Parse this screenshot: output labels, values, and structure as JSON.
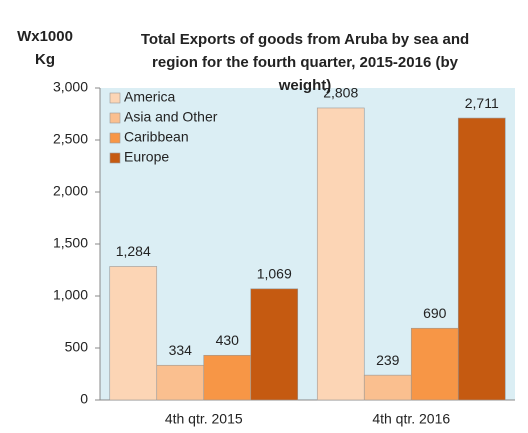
{
  "chart_data": {
    "type": "bar",
    "title": [
      "Total Exports of goods from Aruba by sea and",
      "region for the fourth quarter, 2015-2016 (by",
      "weight)"
    ],
    "y_label": [
      "Wx1000",
      "Kg"
    ],
    "categories": [
      "4th qtr. 2015",
      "4th qtr. 2016"
    ],
    "series": [
      {
        "name": "America",
        "color": "#fcd5b5",
        "values": [
          1284,
          2808
        ],
        "value_labels": [
          "1,284",
          "2,808"
        ]
      },
      {
        "name": "Asia and Other",
        "color": "#fabf8f",
        "values": [
          334,
          239
        ]
      },
      {
        "name": "Caribbean",
        "color": "#f79646",
        "values": [
          430,
          690
        ]
      },
      {
        "name": "Europe",
        "color": "#c55a11",
        "values": [
          1069,
          2711
        ],
        "value_labels": [
          "1,069",
          "2,711"
        ]
      }
    ],
    "ylim": [
      0,
      3000
    ],
    "yticks": [
      0,
      500,
      {
        "value": 1000,
        "label": "1,000"
      },
      {
        "value": 1500,
        "label": "1,500"
      },
      {
        "value": 2000,
        "label": "2,000"
      },
      {
        "value": 2500,
        "label": "2,500"
      },
      {
        "value": 3000,
        "label": "3,000"
      }
    ],
    "legend": "top-left"
  }
}
